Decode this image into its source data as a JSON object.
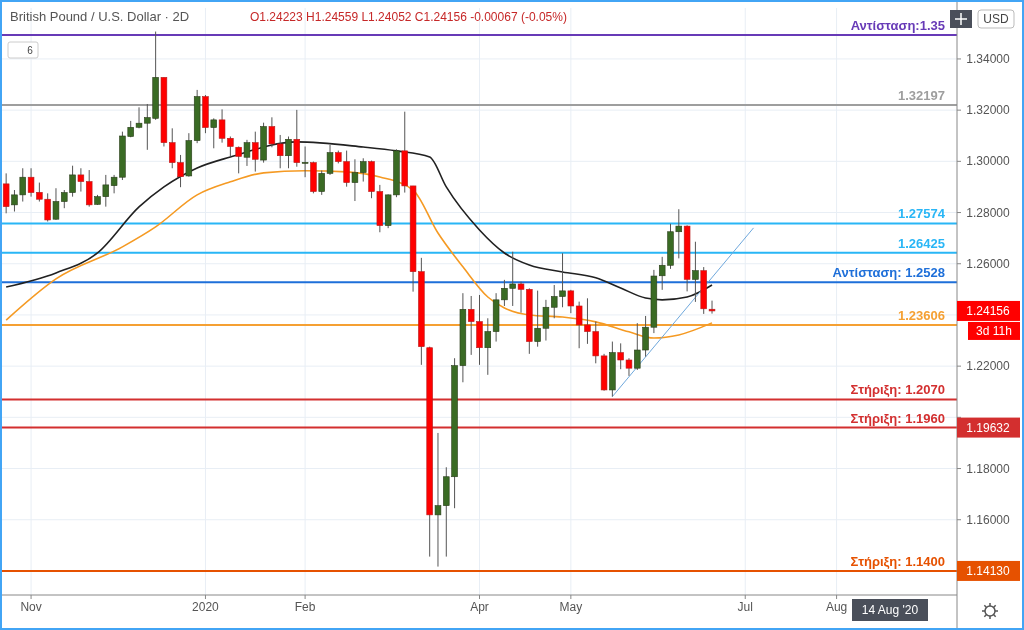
{
  "chart_data": {
    "type": "candlestick",
    "title": "British Pound / U.S. Dollar · 2D",
    "subtitle": "O1.24223 H1.24559 L1.24052 C1.24156 -0.00067 (-0.05%)",
    "categories": [
      null,
      null,
      null,
      "Nov",
      null,
      null,
      null,
      null,
      null,
      null,
      null,
      null,
      null,
      null,
      null,
      null,
      null,
      null,
      null,
      null,
      null,
      null,
      null,
      null,
      "2020",
      null,
      null,
      null,
      null,
      null,
      null,
      null,
      null,
      null,
      null,
      null,
      "Feb",
      null,
      null,
      null,
      null,
      null,
      null,
      null,
      null,
      null,
      null,
      null,
      null,
      null,
      null,
      null,
      null,
      null,
      null,
      null,
      null,
      "Apr",
      null,
      null,
      null,
      null,
      null,
      null,
      null,
      null,
      null,
      null,
      "May",
      null,
      null,
      null,
      null,
      null,
      null,
      null,
      null,
      null,
      null,
      null,
      null,
      null,
      null,
      null,
      null,
      null,
      null,
      null,
      null,
      "Jul",
      null,
      null,
      null,
      null,
      null,
      null,
      null,
      null,
      null,
      null,
      "Aug",
      null,
      null,
      null,
      null,
      null,
      null,
      null,
      null,
      null,
      null,
      null,
      null,
      null,
      null
    ],
    "ohlc": [
      [
        1.2912,
        1.2953,
        1.2797,
        1.2823
      ],
      [
        1.283,
        1.2888,
        1.2804,
        1.2869
      ],
      [
        1.2869,
        1.2973,
        1.2843,
        1.2938
      ],
      [
        1.2938,
        1.2973,
        1.2862,
        1.2878
      ],
      [
        1.2879,
        1.2917,
        1.2843,
        1.2852
      ],
      [
        1.2852,
        1.2875,
        1.2765,
        1.2771
      ],
      [
        1.2774,
        1.2895,
        1.2771,
        1.2843
      ],
      [
        1.2843,
        1.2888,
        1.2817,
        1.2878
      ],
      [
        1.2878,
        1.2983,
        1.2862,
        1.2947
      ],
      [
        1.2947,
        1.2973,
        1.2882,
        1.2921
      ],
      [
        1.2921,
        1.2966,
        1.2823,
        1.283
      ],
      [
        1.2832,
        1.2869,
        1.283,
        1.2862
      ],
      [
        1.2862,
        1.2947,
        1.2823,
        1.2908
      ],
      [
        1.2905,
        1.2947,
        1.2875,
        1.2938
      ],
      [
        1.2938,
        1.3116,
        1.2927,
        1.3099
      ],
      [
        1.3097,
        1.3158,
        1.3094,
        1.3133
      ],
      [
        1.3133,
        1.3211,
        1.3129,
        1.3149
      ],
      [
        1.3149,
        1.3224,
        1.3045,
        1.3171
      ],
      [
        1.3168,
        1.3507,
        1.3162,
        1.3328
      ],
      [
        1.3328,
        1.3328,
        1.3058,
        1.3073
      ],
      [
        1.3073,
        1.3129,
        1.2973,
        1.2995
      ],
      [
        1.2995,
        1.3025,
        1.2899,
        1.294
      ],
      [
        1.2943,
        1.311,
        1.294,
        1.3081
      ],
      [
        1.3081,
        1.3279,
        1.3071,
        1.3253
      ],
      [
        1.3253,
        1.3259,
        1.311,
        1.3132
      ],
      [
        1.3132,
        1.3168,
        1.3051,
        1.3162
      ],
      [
        1.3162,
        1.3203,
        1.3073,
        1.309
      ],
      [
        1.309,
        1.3097,
        1.3019,
        1.3058
      ],
      [
        1.3055,
        1.3058,
        1.2953,
        1.3019
      ],
      [
        1.3016,
        1.3084,
        1.2982,
        1.3073
      ],
      [
        1.3073,
        1.3116,
        1.296,
        1.3008
      ],
      [
        1.3005,
        1.3151,
        1.2995,
        1.3136
      ],
      [
        1.3136,
        1.3172,
        1.3055,
        1.3068
      ],
      [
        1.3068,
        1.3103,
        1.2973,
        1.3022
      ],
      [
        1.3022,
        1.3097,
        1.2973,
        1.3086
      ],
      [
        1.3086,
        1.3201,
        1.2979,
        1.2995
      ],
      [
        1.2994,
        1.3058,
        1.2938,
        1.2996
      ],
      [
        1.2995,
        1.2999,
        1.2875,
        1.2882
      ],
      [
        1.2882,
        1.2964,
        1.2869,
        1.2953
      ],
      [
        1.2953,
        1.3064,
        1.2947,
        1.3034
      ],
      [
        1.3034,
        1.3042,
        1.2992,
        1.2999
      ],
      [
        1.2999,
        1.3042,
        1.2901,
        1.2917
      ],
      [
        1.2917,
        1.3008,
        1.2845,
        1.2956
      ],
      [
        1.2956,
        1.3012,
        1.2921,
        1.2999
      ],
      [
        1.2999,
        1.3003,
        1.2856,
        1.2882
      ],
      [
        1.2882,
        1.2908,
        1.2723,
        1.2749
      ],
      [
        1.2749,
        1.2871,
        1.2739,
        1.2869
      ],
      [
        1.2869,
        1.3047,
        1.286,
        1.3041
      ],
      [
        1.3041,
        1.3194,
        1.2878,
        1.2904
      ],
      [
        1.2904,
        1.2904,
        1.2491,
        1.2569
      ],
      [
        1.2569,
        1.2623,
        1.2205,
        1.2276
      ],
      [
        1.2272,
        1.2276,
        1.1456,
        1.1619
      ],
      [
        1.1619,
        1.1939,
        1.1417,
        1.1655
      ],
      [
        1.1655,
        1.1805,
        1.1456,
        1.1768
      ],
      [
        1.1768,
        1.2231,
        1.1645,
        1.2202
      ],
      [
        1.2202,
        1.2485,
        1.2137,
        1.2422
      ],
      [
        1.2422,
        1.2474,
        1.2244,
        1.2374
      ],
      [
        1.2374,
        1.2478,
        1.2205,
        1.2272
      ],
      [
        1.2272,
        1.2387,
        1.2166,
        1.2335
      ],
      [
        1.2335,
        1.2485,
        1.2296,
        1.2459
      ],
      [
        1.2459,
        1.2537,
        1.2435,
        1.2504
      ],
      [
        1.2504,
        1.2647,
        1.2435,
        1.2521
      ],
      [
        1.2521,
        1.253,
        1.2409,
        1.25
      ],
      [
        1.25,
        1.2504,
        1.2248,
        1.2296
      ],
      [
        1.2296,
        1.2495,
        1.2276,
        1.2348
      ],
      [
        1.2348,
        1.2459,
        1.23,
        1.243
      ],
      [
        1.243,
        1.2517,
        1.2387,
        1.2472
      ],
      [
        1.2472,
        1.2641,
        1.243,
        1.2494
      ],
      [
        1.2494,
        1.2498,
        1.2407,
        1.2435
      ],
      [
        1.2435,
        1.2452,
        1.227,
        1.2361
      ],
      [
        1.2361,
        1.2465,
        1.2287,
        1.2335
      ],
      [
        1.2335,
        1.2374,
        1.2211,
        1.224
      ],
      [
        1.224,
        1.2248,
        1.2104,
        1.2107
      ],
      [
        1.2107,
        1.2296,
        1.2081,
        1.2253
      ],
      [
        1.2253,
        1.2289,
        1.2188,
        1.2224
      ],
      [
        1.2224,
        1.2231,
        1.2162,
        1.2192
      ],
      [
        1.2192,
        1.2368,
        1.2185,
        1.2263
      ],
      [
        1.2263,
        1.2396,
        1.2237,
        1.2352
      ],
      [
        1.2352,
        1.2576,
        1.2329,
        1.2552
      ],
      [
        1.2553,
        1.2627,
        1.2498,
        1.2594
      ],
      [
        1.2594,
        1.2756,
        1.258,
        1.2725
      ],
      [
        1.2725,
        1.2813,
        1.2621,
        1.2747
      ],
      [
        1.2747,
        1.275,
        1.2492,
        1.2539
      ],
      [
        1.2539,
        1.2686,
        1.2451,
        1.2573
      ],
      [
        1.2573,
        1.2587,
        1.2404,
        1.2424
      ],
      [
        1.24223,
        1.24559,
        1.24052,
        1.24156
      ],
      null,
      null,
      null,
      null,
      null,
      null,
      null,
      null,
      null,
      null,
      null,
      null,
      null,
      null,
      null,
      null,
      null,
      null,
      null,
      null,
      null,
      null,
      null,
      null,
      null,
      null,
      null,
      null,
      null
    ],
    "series": [
      {
        "type": "line",
        "color": "#212121",
        "values": [
          1.2509,
          null,
          null,
          null,
          null,
          null,
          1.2564,
          null,
          null,
          null,
          null,
          1.2642,
          null,
          null,
          null,
          null,
          1.2822,
          null,
          null,
          1.29,
          null,
          null,
          null,
          1.2974,
          null,
          null,
          null,
          1.3017,
          null,
          null,
          null,
          null,
          null,
          null,
          null,
          1.3076,
          null,
          null,
          null,
          null,
          null,
          null,
          null,
          1.3056,
          null,
          null,
          null,
          1.3041,
          null,
          null,
          null,
          1.3017,
          null,
          1.29,
          null,
          null,
          null,
          1.2732,
          null,
          null,
          1.2642,
          null,
          null,
          1.2595,
          null,
          null,
          null,
          1.2568,
          null,
          null,
          null,
          1.2545,
          null,
          null,
          1.2505,
          null,
          null,
          1.2466,
          null,
          1.2459,
          null,
          null,
          1.247,
          null,
          null,
          1.2517,
          null,
          null,
          null,
          null,
          null,
          null,
          null,
          null,
          null,
          null,
          null,
          null,
          null,
          null,
          null,
          null,
          null,
          null,
          null,
          null,
          null,
          null,
          null,
          null,
          null,
          null,
          null,
          null,
          null
        ]
      },
      {
        "type": "line",
        "color": "#f59a23",
        "values": [
          1.238,
          null,
          null,
          null,
          null,
          null,
          1.2541,
          null,
          null,
          null,
          null,
          null,
          null,
          null,
          1.2666,
          null,
          null,
          null,
          1.2744,
          null,
          null,
          null,
          null,
          1.2869,
          null,
          null,
          null,
          1.292,
          null,
          null,
          null,
          1.2955,
          null,
          null,
          null,
          null,
          1.2963,
          null,
          null,
          null,
          null,
          1.2959,
          null,
          null,
          null,
          1.2939,
          null,
          null,
          null,
          1.2888,
          null,
          null,
          1.272,
          null,
          null,
          1.2588,
          null,
          null,
          1.247,
          null,
          1.2427,
          null,
          null,
          1.24,
          null,
          null,
          null,
          1.2392,
          null,
          null,
          null,
          1.2373,
          null,
          null,
          null,
          1.2334,
          null,
          null,
          1.231,
          null,
          null,
          1.2322,
          null,
          null,
          null,
          1.2369,
          null,
          null,
          null,
          null,
          null,
          null,
          null,
          null,
          null,
          null,
          null,
          null,
          null,
          null,
          null,
          null,
          null,
          null,
          null,
          null,
          null,
          null,
          null,
          null,
          null,
          null,
          null,
          null,
          null
        ]
      },
      {
        "type": "line",
        "color": "#6fa8dc",
        "values": [
          null,
          null,
          null,
          null,
          null,
          null,
          null,
          null,
          null,
          null,
          null,
          null,
          null,
          null,
          null,
          null,
          null,
          null,
          null,
          null,
          null,
          null,
          null,
          null,
          null,
          null,
          null,
          null,
          null,
          null,
          null,
          null,
          null,
          null,
          null,
          null,
          null,
          null,
          null,
          null,
          null,
          null,
          null,
          null,
          null,
          null,
          null,
          null,
          null,
          null,
          null,
          null,
          null,
          null,
          null,
          null,
          null,
          null,
          null,
          null,
          null,
          null,
          null,
          null,
          null,
          null,
          null,
          null,
          null,
          null,
          null,
          null,
          null,
          1.2081,
          null,
          null,
          null,
          null,
          null,
          null,
          null,
          null,
          null,
          null,
          null,
          null,
          null,
          null,
          null,
          null,
          1.274,
          null,
          null,
          null,
          null,
          null,
          null,
          null,
          null,
          null,
          null,
          null,
          null,
          null,
          null,
          null,
          null,
          null,
          null,
          null,
          null,
          null,
          null,
          null,
          null
        ]
      }
    ],
    "ylim": [
      1.1306,
      1.3599
    ],
    "yticks": [
      {
        "value": 1.16,
        "label": "1.16000"
      },
      {
        "value": 1.18,
        "label": "1.18000"
      },
      {
        "value": 1.2,
        "label": null
      },
      {
        "value": 1.22,
        "label": "1.22000"
      },
      {
        "value": 1.24,
        "label": null
      },
      {
        "value": 1.26,
        "label": "1.26000"
      },
      {
        "value": 1.28,
        "label": "1.28000"
      },
      {
        "value": 1.3,
        "label": "1.30000"
      },
      {
        "value": 1.32,
        "label": "1.32000"
      },
      {
        "value": 1.34,
        "label": "1.34000"
      }
    ],
    "grid": true,
    "ref_lines": [
      {
        "axis": "y",
        "value": 1.3494,
        "label": "Αντίσταση:1.35",
        "color": "#673ab7"
      },
      {
        "axis": "y",
        "value": 1.32197,
        "label": "1.32197",
        "color": "#9e9e9e"
      },
      {
        "axis": "y",
        "value": 1.27574,
        "label": "1.27574",
        "color": "#29b6f6"
      },
      {
        "axis": "y",
        "value": 1.26425,
        "label": "1.26425",
        "color": "#29b6f6"
      },
      {
        "axis": "y",
        "value": 1.2528,
        "label": "Αντίσταση: 1.2528",
        "color": "#1e6fd9"
      },
      {
        "axis": "y",
        "value": 1.23606,
        "label": "1.23606",
        "color": "#f5a033"
      },
      {
        "axis": "y",
        "value": 1.207,
        "label": "Στήριξη: 1.2070",
        "color": "#d32f2f"
      },
      {
        "axis": "y",
        "value": 1.196,
        "label": "Στήριξη: 1.1960",
        "color": "#d32f2f"
      },
      {
        "axis": "y",
        "value": 1.14,
        "label": "Στήριξη: 1.1400",
        "color": "#e65100"
      }
    ],
    "annotations": [
      "1.24156",
      "1.19632",
      "1.14130",
      "USD",
      "6",
      "3d 11h",
      "14 Aug '20"
    ]
  }
}
